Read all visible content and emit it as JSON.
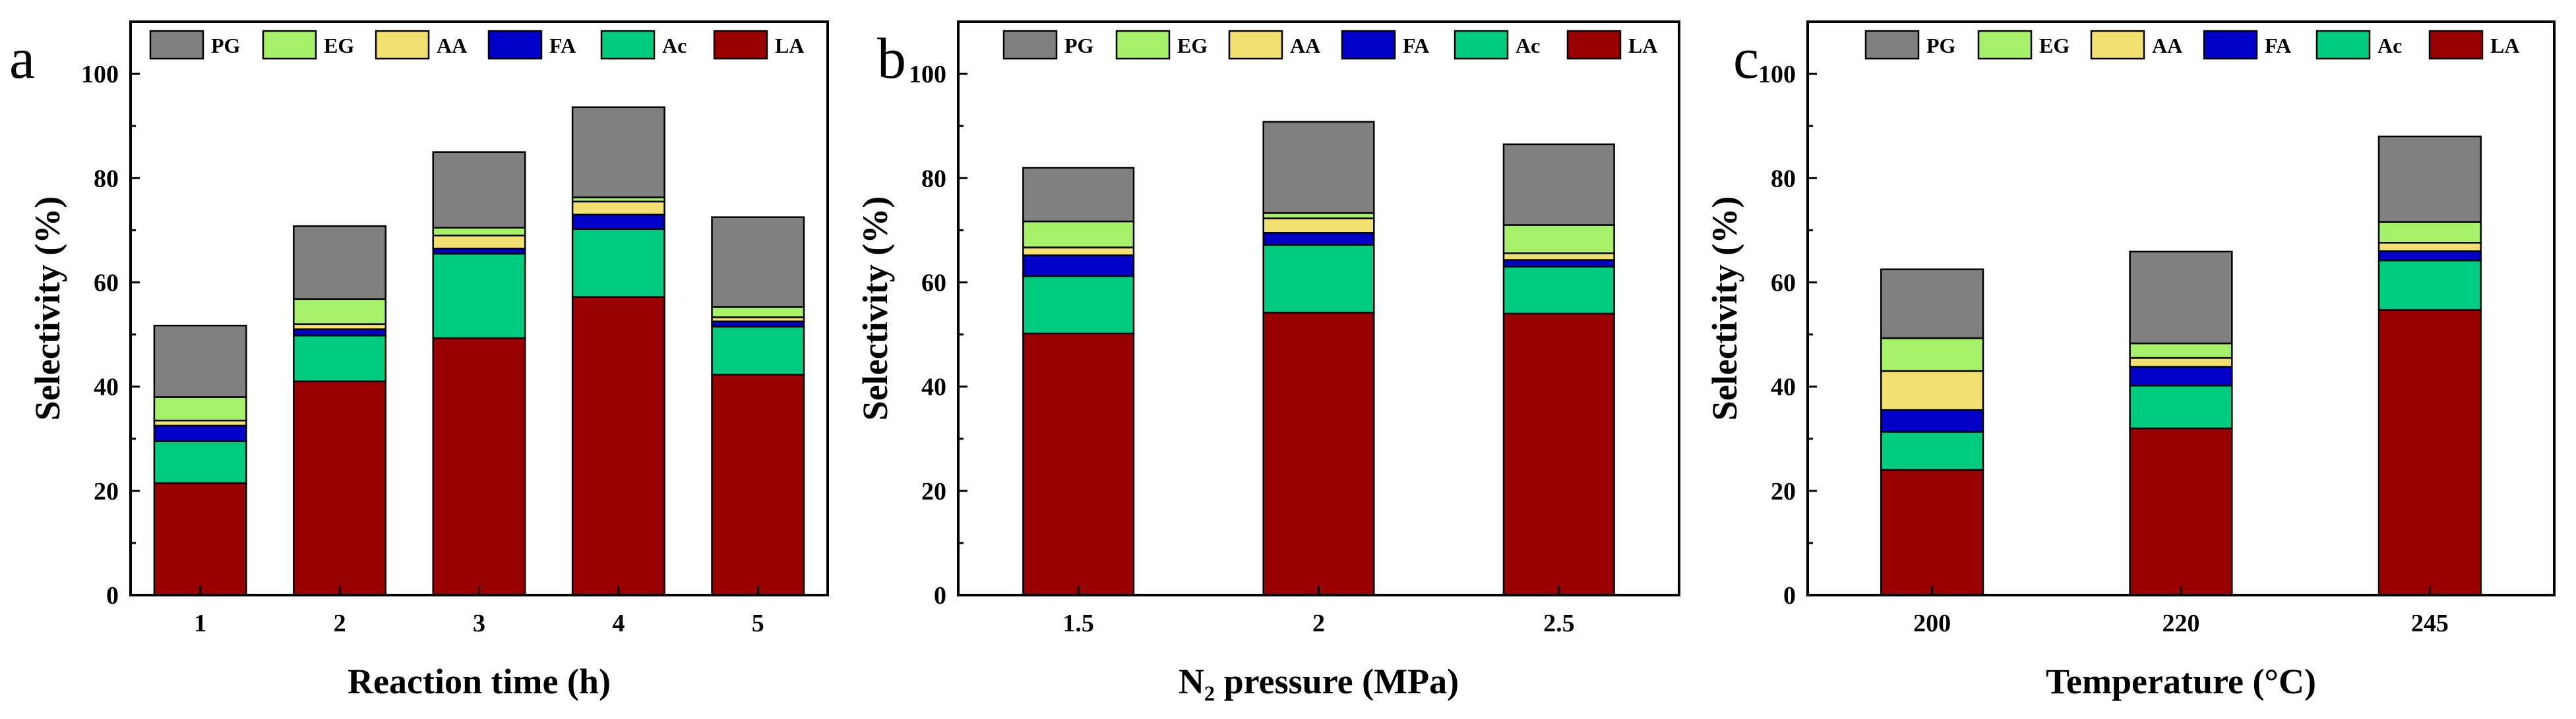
{
  "colors": {
    "LA": "#990000",
    "Ac": "#00cc80",
    "FA": "#0000c8",
    "AA": "#f2e070",
    "EG": "#a6f06a",
    "PG": "#808080"
  },
  "legend_order": [
    "PG",
    "EG",
    "AA",
    "FA",
    "Ac",
    "LA"
  ],
  "stack_order": [
    "LA",
    "Ac",
    "FA",
    "AA",
    "EG",
    "PG"
  ],
  "chart_data": [
    {
      "type": "bar",
      "stacked": true,
      "panel": "a",
      "title": "",
      "xlabel": "Reaction time (h)",
      "ylabel": "Selectivity (%)",
      "ylim": [
        0,
        110
      ],
      "yticks": [
        "0",
        "20",
        "40",
        "60",
        "80",
        "100"
      ],
      "categories": [
        "1",
        "2",
        "3",
        "4",
        "5"
      ],
      "series": [
        {
          "name": "LA",
          "values": [
            21.5,
            41.0,
            49.3,
            57.2,
            42.3
          ]
        },
        {
          "name": "Ac",
          "values": [
            8.0,
            8.8,
            16.2,
            13.0,
            9.2
          ]
        },
        {
          "name": "FA",
          "values": [
            3.0,
            1.2,
            1.0,
            2.8,
            1.0
          ]
        },
        {
          "name": "AA",
          "values": [
            1.0,
            1.0,
            2.5,
            2.5,
            0.8
          ]
        },
        {
          "name": "EG",
          "values": [
            4.5,
            4.8,
            1.5,
            0.8,
            2.0
          ]
        },
        {
          "name": "PG",
          "values": [
            13.7,
            14.0,
            14.5,
            17.3,
            17.2
          ]
        }
      ]
    },
    {
      "type": "bar",
      "stacked": true,
      "panel": "b",
      "title": "",
      "xlabel": "N₂ pressure (MPa)",
      "ylabel": "Selectivity (%)",
      "ylim": [
        0,
        110
      ],
      "yticks": [
        "0",
        "20",
        "40",
        "60",
        "80",
        "100"
      ],
      "categories": [
        "1.5",
        "2",
        "2.5"
      ],
      "series": [
        {
          "name": "LA",
          "values": [
            50.2,
            54.2,
            54.0
          ]
        },
        {
          "name": "Ac",
          "values": [
            11.0,
            13.0,
            9.0
          ]
        },
        {
          "name": "FA",
          "values": [
            4.0,
            2.3,
            1.3
          ]
        },
        {
          "name": "AA",
          "values": [
            1.5,
            2.8,
            1.3
          ]
        },
        {
          "name": "EG",
          "values": [
            5.0,
            1.0,
            5.4
          ]
        },
        {
          "name": "PG",
          "values": [
            10.3,
            17.5,
            15.5
          ]
        }
      ]
    },
    {
      "type": "bar",
      "stacked": true,
      "panel": "c",
      "title": "",
      "xlabel": "Temperature (°C)",
      "ylabel": "Selectivity (%)",
      "ylim": [
        0,
        110
      ],
      "yticks": [
        "0",
        "20",
        "40",
        "60",
        "80",
        "100"
      ],
      "categories": [
        "200",
        "220",
        "245"
      ],
      "series": [
        {
          "name": "LA",
          "values": [
            24.0,
            32.0,
            54.7
          ]
        },
        {
          "name": "Ac",
          "values": [
            7.3,
            8.2,
            9.5
          ]
        },
        {
          "name": "FA",
          "values": [
            4.2,
            3.6,
            1.8
          ]
        },
        {
          "name": "AA",
          "values": [
            7.5,
            1.7,
            1.6
          ]
        },
        {
          "name": "EG",
          "values": [
            6.3,
            2.8,
            4.0
          ]
        },
        {
          "name": "PG",
          "values": [
            13.2,
            17.6,
            16.4
          ]
        }
      ]
    }
  ]
}
